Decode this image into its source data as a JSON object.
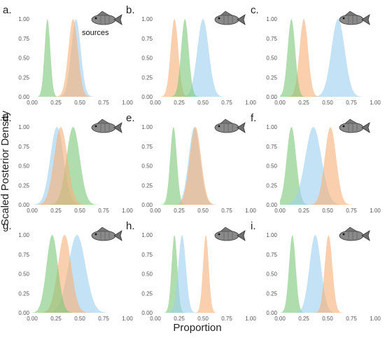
{
  "figure": {
    "ylabel": "Scaled Posterior Density",
    "xlabel": "Proportion",
    "sources_label": "sources"
  },
  "colors": {
    "green": "#7fc87a",
    "orange": "#f6b27a",
    "blue": "#9fd1ef"
  },
  "chart_data": [
    {
      "label": "a.",
      "type": "area",
      "icon": "fish-illustration-icon",
      "xticks": [
        "0.00",
        "0.25",
        "0.50",
        "0.75",
        "1.00"
      ],
      "yticks": [
        "0.00",
        "0.25",
        "0.50",
        "0.75",
        "1.00"
      ],
      "xlim": [
        0,
        1
      ],
      "ylim": [
        0,
        1
      ],
      "series": [
        {
          "color": "green",
          "peak": 0.16,
          "width": 0.03
        },
        {
          "color": "blue",
          "peak": 0.46,
          "width": 0.05
        },
        {
          "color": "orange",
          "peak": 0.43,
          "width": 0.05
        }
      ]
    },
    {
      "label": "b.",
      "type": "area",
      "icon": "fish-illustration-icon",
      "xticks": [
        "0.00",
        "0.25",
        "0.50",
        "0.75",
        "1.00"
      ],
      "yticks": [
        "0.00",
        "0.25",
        "0.50",
        "0.75",
        "1.00"
      ],
      "xlim": [
        0,
        1
      ],
      "ylim": [
        0,
        1
      ],
      "series": [
        {
          "color": "blue",
          "peak": 0.5,
          "width": 0.06
        },
        {
          "color": "orange",
          "peak": 0.2,
          "width": 0.04
        },
        {
          "color": "green",
          "peak": 0.31,
          "width": 0.04
        }
      ]
    },
    {
      "label": "c.",
      "type": "area",
      "icon": "fish-illustration-icon",
      "xticks": [
        "0.00",
        "0.25",
        "0.50",
        "0.75",
        "1.00"
      ],
      "yticks": [
        "0.00",
        "0.25",
        "0.50",
        "0.75",
        "1.00"
      ],
      "xlim": [
        0,
        1
      ],
      "ylim": [
        0,
        1
      ],
      "series": [
        {
          "color": "blue",
          "peak": 0.61,
          "width": 0.07
        },
        {
          "color": "orange",
          "peak": 0.25,
          "width": 0.045
        },
        {
          "color": "green",
          "peak": 0.12,
          "width": 0.04
        }
      ]
    },
    {
      "label": "d.",
      "type": "area",
      "icon": "fish-illustration-icon",
      "xticks": [
        "0.00",
        "0.25",
        "0.50",
        "0.75",
        "1.00"
      ],
      "yticks": [
        "0.00",
        "0.25",
        "0.50",
        "0.75",
        "1.00"
      ],
      "xlim": [
        0,
        1
      ],
      "ylim": [
        0,
        1
      ],
      "series": [
        {
          "color": "blue",
          "peak": 0.26,
          "width": 0.07
        },
        {
          "color": "green",
          "peak": 0.43,
          "width": 0.07
        },
        {
          "color": "orange",
          "peak": 0.3,
          "width": 0.07
        }
      ]
    },
    {
      "label": "e.",
      "type": "area",
      "icon": "fish-illustration-icon",
      "xticks": [
        "0.00",
        "0.25",
        "0.50",
        "0.75",
        "1.00"
      ],
      "yticks": [
        "0.00",
        "0.25",
        "0.50",
        "0.75",
        "1.00"
      ],
      "xlim": [
        0,
        1
      ],
      "ylim": [
        0,
        1
      ],
      "series": [
        {
          "color": "green",
          "peak": 0.19,
          "width": 0.035
        },
        {
          "color": "blue",
          "peak": 0.41,
          "width": 0.06
        },
        {
          "color": "orange",
          "peak": 0.42,
          "width": 0.06
        }
      ]
    },
    {
      "label": "f.",
      "type": "area",
      "icon": "fish-illustration-icon",
      "xticks": [
        "0.00",
        "0.25",
        "0.50",
        "0.75",
        "1.00"
      ],
      "yticks": [
        "0.00",
        "0.25",
        "0.50",
        "0.75",
        "1.00"
      ],
      "xlim": [
        0,
        1
      ],
      "ylim": [
        0,
        1
      ],
      "series": [
        {
          "color": "green",
          "peak": 0.12,
          "width": 0.05
        },
        {
          "color": "blue",
          "peak": 0.35,
          "width": 0.085
        },
        {
          "color": "orange",
          "peak": 0.53,
          "width": 0.06
        }
      ]
    },
    {
      "label": "g.",
      "type": "area",
      "icon": "fish-illustration-icon",
      "xticks": [
        "0.00",
        "0.25",
        "0.50",
        "0.75",
        "1.00"
      ],
      "yticks": [
        "0.00",
        "0.25",
        "0.50",
        "0.75",
        "1.00"
      ],
      "xlim": [
        0,
        1
      ],
      "ylim": [
        0,
        1
      ],
      "series": [
        {
          "color": "blue",
          "peak": 0.47,
          "width": 0.09
        },
        {
          "color": "orange",
          "peak": 0.34,
          "width": 0.07
        },
        {
          "color": "green",
          "peak": 0.21,
          "width": 0.06
        }
      ]
    },
    {
      "label": "h.",
      "type": "area",
      "icon": "fish-illustration-icon",
      "xticks": [
        "0.00",
        "0.25",
        "0.50",
        "0.75",
        "1.00"
      ],
      "yticks": [
        "0.00",
        "0.25",
        "0.50",
        "0.75",
        "1.00"
      ],
      "xlim": [
        0,
        1
      ],
      "ylim": [
        0,
        1
      ],
      "series": [
        {
          "color": "green",
          "peak": 0.2,
          "width": 0.03
        },
        {
          "color": "blue",
          "peak": 0.28,
          "width": 0.04
        },
        {
          "color": "orange",
          "peak": 0.53,
          "width": 0.03
        }
      ]
    },
    {
      "label": "i.",
      "type": "area",
      "icon": "fish-illustration-icon",
      "xticks": [
        "0.00",
        "0.25",
        "0.50",
        "0.75",
        "1.00"
      ],
      "yticks": [
        "0.00",
        "0.25",
        "0.50",
        "0.75",
        "1.00"
      ],
      "xlim": [
        0,
        1
      ],
      "ylim": [
        0,
        1
      ],
      "series": [
        {
          "color": "green",
          "peak": 0.13,
          "width": 0.035
        },
        {
          "color": "blue",
          "peak": 0.37,
          "width": 0.06
        },
        {
          "color": "orange",
          "peak": 0.51,
          "width": 0.04
        }
      ]
    }
  ]
}
